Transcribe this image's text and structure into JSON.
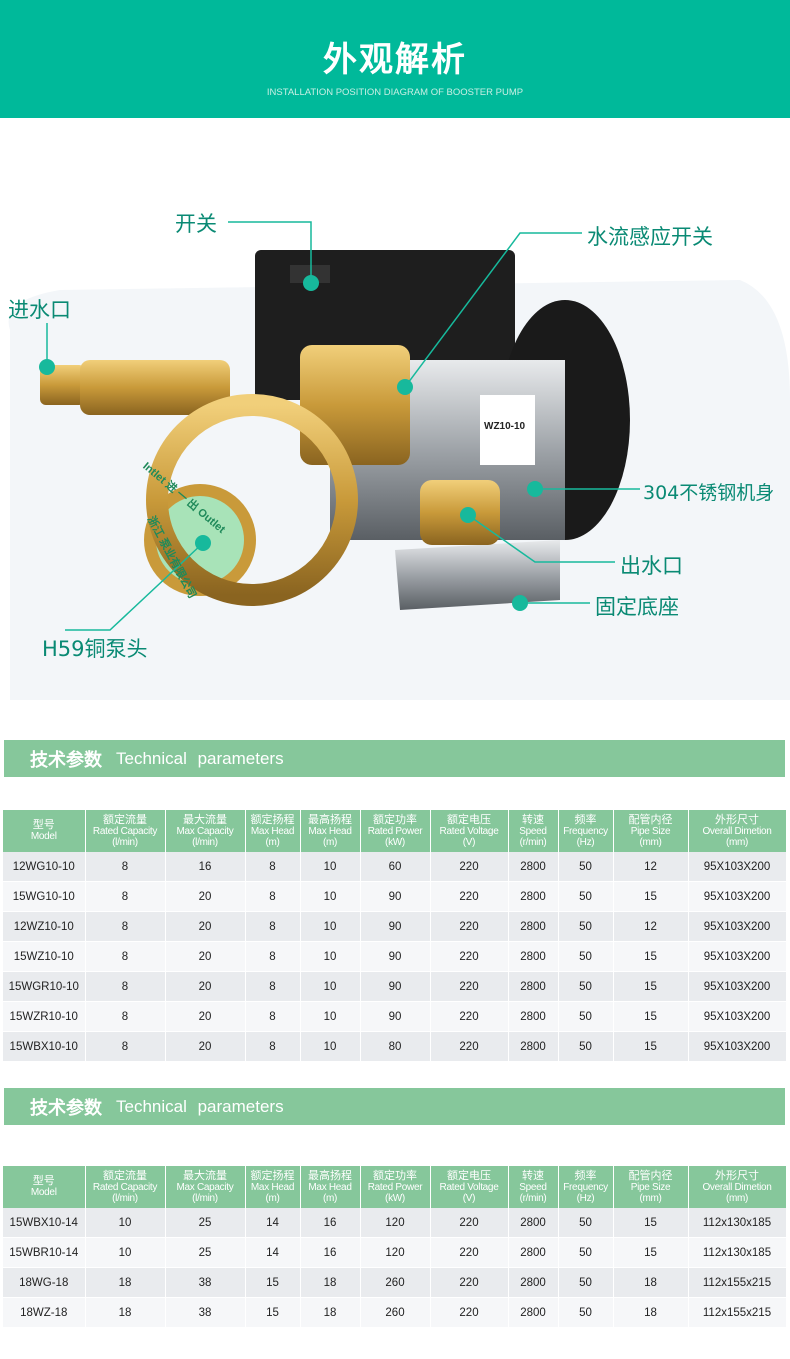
{
  "header": {
    "title": "外观解析",
    "subtitle": "INSTALLATION POSITION DIAGRAM OF BOOSTER PUMP"
  },
  "callouts": {
    "switch": "开关",
    "flow_switch": "水流感应开关",
    "inlet": "进水口",
    "body": "304不锈钢机身",
    "outlet": "出水口",
    "base": "固定底座",
    "head": "H59铜泵头"
  },
  "pump_markings": {
    "model": "WZ10-10",
    "head_text": "Intlet 进 一 出 Outlet",
    "maker": "浙江 泵业有限公司"
  },
  "colors": {
    "header": "#00b99a",
    "section": "#86c79b",
    "callout": "#0a8a74"
  },
  "section_title_cn": "技术参数",
  "section_title_en": "Technical parameters",
  "columns": [
    {
      "cn": "型号",
      "en": "Model",
      "unit": ""
    },
    {
      "cn": "额定流量",
      "en": "Rated Capacity",
      "unit": "(l/min)"
    },
    {
      "cn": "最大流量",
      "en": "Max Capacity",
      "unit": "(l/min)"
    },
    {
      "cn": "额定扬程",
      "en": "Max Head",
      "unit": "(m)"
    },
    {
      "cn": "最高扬程",
      "en": "Max Head",
      "unit": "(m)"
    },
    {
      "cn": "额定功率",
      "en": "Rated Power",
      "unit": "(kW)"
    },
    {
      "cn": "额定电压",
      "en": "Rated Voltage",
      "unit": "(V)"
    },
    {
      "cn": "转速",
      "en": "Speed",
      "unit": "(r/min)"
    },
    {
      "cn": "频率",
      "en": "Frequency",
      "unit": "(Hz)"
    },
    {
      "cn": "配管内径",
      "en": "Pipe Size",
      "unit": "(mm)"
    },
    {
      "cn": "外形尺寸",
      "en": "Overall Dimetion",
      "unit": "(mm)"
    }
  ],
  "table1": [
    [
      "12WG10-10",
      "8",
      "16",
      "8",
      "10",
      "60",
      "220",
      "2800",
      "50",
      "12",
      "95X103X200"
    ],
    [
      "15WG10-10",
      "8",
      "20",
      "8",
      "10",
      "90",
      "220",
      "2800",
      "50",
      "15",
      "95X103X200"
    ],
    [
      "12WZ10-10",
      "8",
      "20",
      "8",
      "10",
      "90",
      "220",
      "2800",
      "50",
      "12",
      "95X103X200"
    ],
    [
      "15WZ10-10",
      "8",
      "20",
      "8",
      "10",
      "90",
      "220",
      "2800",
      "50",
      "15",
      "95X103X200"
    ],
    [
      "15WGR10-10",
      "8",
      "20",
      "8",
      "10",
      "90",
      "220",
      "2800",
      "50",
      "15",
      "95X103X200"
    ],
    [
      "15WZR10-10",
      "8",
      "20",
      "8",
      "10",
      "90",
      "220",
      "2800",
      "50",
      "15",
      "95X103X200"
    ],
    [
      "15WBX10-10",
      "8",
      "20",
      "8",
      "10",
      "80",
      "220",
      "2800",
      "50",
      "15",
      "95X103X200"
    ]
  ],
  "table2": [
    [
      "15WBX10-14",
      "10",
      "25",
      "14",
      "16",
      "120",
      "220",
      "2800",
      "50",
      "15",
      "112x130x185"
    ],
    [
      "15WBR10-14",
      "10",
      "25",
      "14",
      "16",
      "120",
      "220",
      "2800",
      "50",
      "15",
      "112x130x185"
    ],
    [
      "18WG-18",
      "18",
      "38",
      "15",
      "18",
      "260",
      "220",
      "2800",
      "50",
      "18",
      "112x155x215"
    ],
    [
      "18WZ-18",
      "18",
      "38",
      "15",
      "18",
      "260",
      "220",
      "2800",
      "50",
      "18",
      "112x155x215"
    ]
  ]
}
